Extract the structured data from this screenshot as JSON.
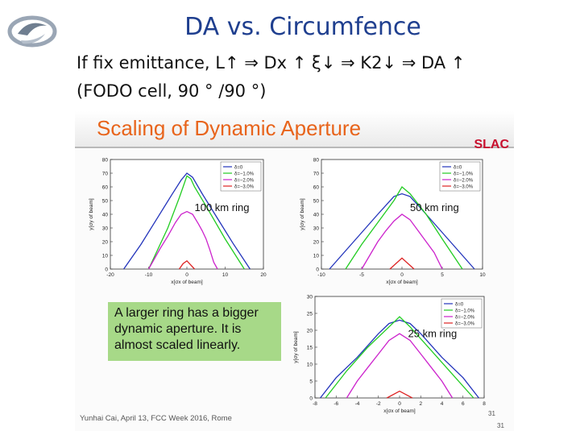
{
  "slide": {
    "title": "DA vs. Circumfence",
    "line1": "If fix emittance, L↑ ⇒ Dx ↑ ξ↓ ⇒ K2↓ ⇒ DA ↑",
    "line2": "(FODO cell, 90 ° /90 °)"
  },
  "embedded_slide": {
    "title": "Scaling of Dynamic Aperture",
    "brand": "SLAC",
    "callout": "A larger ring has a bigger dynamic aperture. It is almost scaled linearly.",
    "footer": "Yunhai Cai, April 13, FCC Week 2016, Rome",
    "page_number": "31"
  },
  "colors": {
    "title_blue": "#1f3f8f",
    "banner_orange": "#e8641b",
    "callout_green": "#a7d988",
    "delta0": "#2233bb",
    "delta_m1": "#22cc22",
    "delta_m2": "#cc22cc",
    "delta_m3": "#dd2222"
  },
  "chart_data": [
    {
      "type": "line",
      "annotation": "100 km ring",
      "xlabel": "x[σx of beam]",
      "ylabel": "y[σy of beam]",
      "xlim": [
        -20,
        20
      ],
      "ylim": [
        0,
        80
      ],
      "xticks": [
        -20,
        -10,
        0,
        10,
        20
      ],
      "xtick_labels": [
        "-20",
        "-10",
        "0",
        "10",
        "20"
      ],
      "yticks": [
        0,
        10,
        20,
        30,
        40,
        50,
        60,
        70,
        80
      ],
      "legend": "top-right",
      "series": [
        {
          "name": "δ=0",
          "color": "#2233bb",
          "points": [
            [
              -16.5,
              0
            ],
            [
              -12,
              18
            ],
            [
              -8,
              36
            ],
            [
              -4,
              54
            ],
            [
              -1.5,
              65
            ],
            [
              0,
              70
            ],
            [
              1.5,
              67
            ],
            [
              4,
              55
            ],
            [
              8,
              37
            ],
            [
              12,
              19
            ],
            [
              16.5,
              0
            ]
          ]
        },
        {
          "name": "δ=−1.0%",
          "color": "#22cc22",
          "points": [
            [
              -10,
              0
            ],
            [
              -8,
              12
            ],
            [
              -5,
              30
            ],
            [
              -2,
              52
            ],
            [
              -1,
              60
            ],
            [
              0,
              68
            ],
            [
              1,
              66
            ],
            [
              2,
              60
            ],
            [
              5,
              46
            ],
            [
              10,
              22
            ],
            [
              15,
              0
            ]
          ]
        },
        {
          "name": "δ=−2.0%",
          "color": "#cc22cc",
          "points": [
            [
              -10,
              0
            ],
            [
              -9,
              5
            ],
            [
              -7,
              15
            ],
            [
              -5,
              24
            ],
            [
              -3,
              34
            ],
            [
              -1.5,
              40
            ],
            [
              0,
              42
            ],
            [
              1.5,
              40
            ],
            [
              3,
              33
            ],
            [
              4,
              28
            ],
            [
              5,
              22
            ],
            [
              6,
              14
            ],
            [
              7,
              5
            ],
            [
              8,
              0
            ]
          ]
        },
        {
          "name": "δ=−3.0%",
          "color": "#dd2222",
          "points": [
            [
              -2,
              0
            ],
            [
              -1,
              4
            ],
            [
              0,
              6
            ],
            [
              1,
              3
            ],
            [
              2,
              0
            ]
          ]
        }
      ]
    },
    {
      "type": "line",
      "annotation": "50 km ring",
      "xlabel": "x[σx of beam]",
      "ylabel": "y[σy of beam]",
      "xlim": [
        -10,
        10
      ],
      "ylim": [
        0,
        80
      ],
      "xticks": [
        -10,
        -5,
        0,
        5,
        10
      ],
      "xtick_labels": [
        "-10",
        "-5",
        "0",
        "5",
        "10"
      ],
      "yticks": [
        0,
        10,
        20,
        30,
        40,
        50,
        60,
        70,
        80
      ],
      "legend": "top-right",
      "series": [
        {
          "name": "δ=0",
          "color": "#2233bb",
          "points": [
            [
              -9,
              0
            ],
            [
              -6,
              20
            ],
            [
              -3,
              40
            ],
            [
              -1,
              53
            ],
            [
              0,
              55
            ],
            [
              1,
              53
            ],
            [
              3,
              40
            ],
            [
              6,
              20
            ],
            [
              9,
              0
            ]
          ]
        },
        {
          "name": "δ=−1.0%",
          "color": "#22cc22",
          "points": [
            [
              -7,
              0
            ],
            [
              -5,
              18
            ],
            [
              -3,
              34
            ],
            [
              -1,
              50
            ],
            [
              0,
              60
            ],
            [
              1,
              55
            ],
            [
              3,
              40
            ],
            [
              5,
              22
            ],
            [
              7.5,
              0
            ]
          ]
        },
        {
          "name": "δ=−2.0%",
          "color": "#cc22cc",
          "points": [
            [
              -5,
              0
            ],
            [
              -4,
              10
            ],
            [
              -3,
              20
            ],
            [
              -2,
              28
            ],
            [
              -1,
              35
            ],
            [
              0,
              40
            ],
            [
              1,
              36
            ],
            [
              2,
              28
            ],
            [
              3,
              20
            ],
            [
              4,
              12
            ],
            [
              5,
              0
            ]
          ]
        },
        {
          "name": "δ=−3.0%",
          "color": "#dd2222",
          "points": [
            [
              -1.5,
              0
            ],
            [
              0,
              8
            ],
            [
              1.5,
              0
            ]
          ]
        }
      ]
    },
    {
      "type": "line",
      "annotation": "25 km ring",
      "xlabel": "x[σx of beam]",
      "ylabel": "y[σy of beam]",
      "xlim": [
        -8,
        8
      ],
      "ylim": [
        0,
        30
      ],
      "xticks": [
        -8,
        -6,
        -4,
        -2,
        0,
        2,
        4,
        6,
        8
      ],
      "xtick_labels": [
        "-8",
        "-6",
        "-4",
        "-2",
        "0",
        "2",
        "4",
        "6",
        "8"
      ],
      "yticks": [
        0,
        5,
        10,
        15,
        20,
        25,
        30
      ],
      "legend": "top-right",
      "series": [
        {
          "name": "δ=0",
          "color": "#2233bb",
          "points": [
            [
              -7.5,
              0
            ],
            [
              -6,
              6
            ],
            [
              -4,
              12
            ],
            [
              -2,
              19
            ],
            [
              -1,
              22
            ],
            [
              0,
              23
            ],
            [
              1,
              22
            ],
            [
              2,
              19
            ],
            [
              4,
              12
            ],
            [
              6,
              6
            ],
            [
              7.5,
              0
            ]
          ]
        },
        {
          "name": "δ=−1.0%",
          "color": "#22cc22",
          "points": [
            [
              -7,
              0
            ],
            [
              -5,
              8
            ],
            [
              -3,
              15
            ],
            [
              -1,
              21
            ],
            [
              0,
              24
            ],
            [
              1,
              21
            ],
            [
              3,
              14
            ],
            [
              5,
              7
            ],
            [
              7,
              0
            ]
          ]
        },
        {
          "name": "δ=−2.0%",
          "color": "#cc22cc",
          "points": [
            [
              -5,
              0
            ],
            [
              -4,
              5
            ],
            [
              -3,
              9
            ],
            [
              -2,
              13
            ],
            [
              -1,
              17
            ],
            [
              0,
              19
            ],
            [
              1,
              17
            ],
            [
              2,
              13
            ],
            [
              3,
              9
            ],
            [
              4,
              5
            ],
            [
              5,
              0
            ]
          ]
        },
        {
          "name": "δ=−3.0%",
          "color": "#dd2222",
          "points": [
            [
              -1.2,
              0
            ],
            [
              0,
              2
            ],
            [
              1.2,
              0
            ]
          ]
        }
      ]
    }
  ]
}
